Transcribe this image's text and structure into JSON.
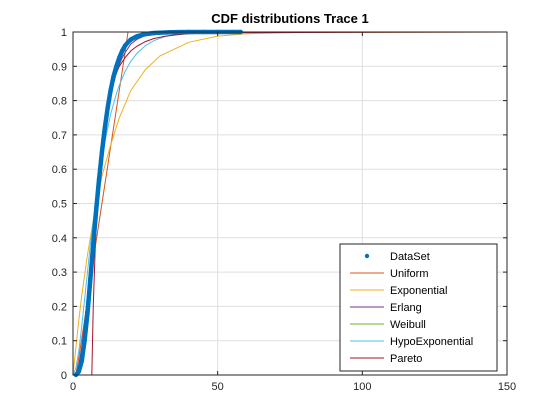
{
  "chart_data": {
    "type": "line",
    "title": "CDF distributions Trace 1",
    "xlabel": "",
    "ylabel": "",
    "xlim": [
      0,
      150
    ],
    "ylim": [
      0,
      1
    ],
    "xticks": [
      0,
      50,
      100,
      150
    ],
    "yticks": [
      0,
      0.1,
      0.2,
      0.3,
      0.4,
      0.5,
      0.6,
      0.7,
      0.8,
      0.9,
      1
    ],
    "xtick_labels": [
      "0",
      "50",
      "100",
      "150"
    ],
    "ytick_labels": [
      "0",
      "0.1",
      "0.2",
      "0.3",
      "0.4",
      "0.5",
      "0.6",
      "0.7",
      "0.8",
      "0.9",
      "1"
    ],
    "grid": true,
    "legend_position": "bottom-right",
    "series": [
      {
        "name": "DataSet",
        "style": "markers",
        "color": "#0072BD",
        "x": [
          1,
          2,
          3,
          4,
          5,
          6,
          7,
          8,
          9,
          10,
          11,
          12,
          13,
          14,
          15,
          16,
          17,
          18,
          19,
          20,
          22,
          24,
          26,
          28,
          30,
          33,
          36,
          40,
          45,
          50,
          55,
          58
        ],
        "y": [
          0.0,
          0.01,
          0.04,
          0.1,
          0.18,
          0.28,
          0.38,
          0.48,
          0.57,
          0.65,
          0.72,
          0.78,
          0.83,
          0.87,
          0.9,
          0.925,
          0.945,
          0.96,
          0.97,
          0.978,
          0.987,
          0.992,
          0.995,
          0.997,
          0.998,
          0.999,
          0.9995,
          1.0,
          1.0,
          1.0,
          1.0,
          1.0
        ]
      },
      {
        "name": "Uniform",
        "style": "line",
        "color": "#D95319",
        "x": [
          0,
          1,
          2,
          4,
          6,
          8,
          10,
          12,
          14,
          16,
          18,
          19,
          150
        ],
        "y": [
          0,
          0,
          0.05,
          0.16,
          0.28,
          0.39,
          0.5,
          0.61,
          0.72,
          0.83,
          0.94,
          1.0,
          1.0
        ]
      },
      {
        "name": "Exponential",
        "style": "line",
        "color": "#EDB120",
        "x": [
          0,
          1,
          2,
          3,
          5,
          7,
          10,
          13,
          16,
          20,
          25,
          30,
          40,
          50,
          60,
          80,
          150
        ],
        "y": [
          0,
          0.08,
          0.16,
          0.23,
          0.35,
          0.45,
          0.58,
          0.67,
          0.75,
          0.83,
          0.89,
          0.93,
          0.97,
          0.988,
          0.995,
          0.999,
          1.0
        ]
      },
      {
        "name": "Erlang",
        "style": "line",
        "color": "#7E2F8E",
        "x": [
          0,
          1,
          2,
          3,
          4,
          5,
          6,
          7,
          8,
          9,
          10,
          11,
          12,
          13,
          14,
          15,
          16,
          17,
          18,
          20,
          22,
          25,
          28,
          32,
          36,
          40,
          50,
          150
        ],
        "y": [
          0,
          0.005,
          0.03,
          0.08,
          0.15,
          0.23,
          0.32,
          0.41,
          0.5,
          0.58,
          0.65,
          0.71,
          0.77,
          0.81,
          0.85,
          0.88,
          0.905,
          0.925,
          0.94,
          0.965,
          0.978,
          0.99,
          0.995,
          0.998,
          0.999,
          1.0,
          1.0,
          1.0
        ]
      },
      {
        "name": "Weibull",
        "style": "line",
        "color": "#77AC30",
        "x": [
          0,
          150
        ],
        "y": [
          0,
          0
        ]
      },
      {
        "name": "HypoExponential",
        "style": "line",
        "color": "#4DBEEE",
        "x": [
          0,
          1,
          2,
          3,
          4,
          5,
          6,
          7,
          8,
          9,
          10,
          11,
          12,
          13,
          14,
          15,
          16,
          17,
          18,
          20,
          22,
          25,
          28,
          32,
          36,
          40,
          50,
          60,
          150
        ],
        "y": [
          0,
          0.02,
          0.07,
          0.14,
          0.22,
          0.3,
          0.38,
          0.45,
          0.52,
          0.58,
          0.63,
          0.68,
          0.72,
          0.76,
          0.79,
          0.82,
          0.845,
          0.865,
          0.885,
          0.915,
          0.937,
          0.96,
          0.975,
          0.987,
          0.993,
          0.996,
          0.999,
          1.0,
          1.0
        ]
      },
      {
        "name": "Pareto",
        "style": "line",
        "color": "#A2142F",
        "x": [
          0,
          6.5,
          7,
          8,
          9,
          10,
          11,
          12,
          13,
          14,
          15,
          16,
          18,
          20,
          22,
          25,
          28,
          32,
          36,
          40,
          50,
          150
        ],
        "y": [
          0,
          0,
          0.2,
          0.45,
          0.6,
          0.69,
          0.75,
          0.8,
          0.835,
          0.86,
          0.88,
          0.9,
          0.925,
          0.945,
          0.958,
          0.972,
          0.981,
          0.988,
          0.992,
          0.995,
          0.998,
          1.0
        ]
      }
    ]
  }
}
